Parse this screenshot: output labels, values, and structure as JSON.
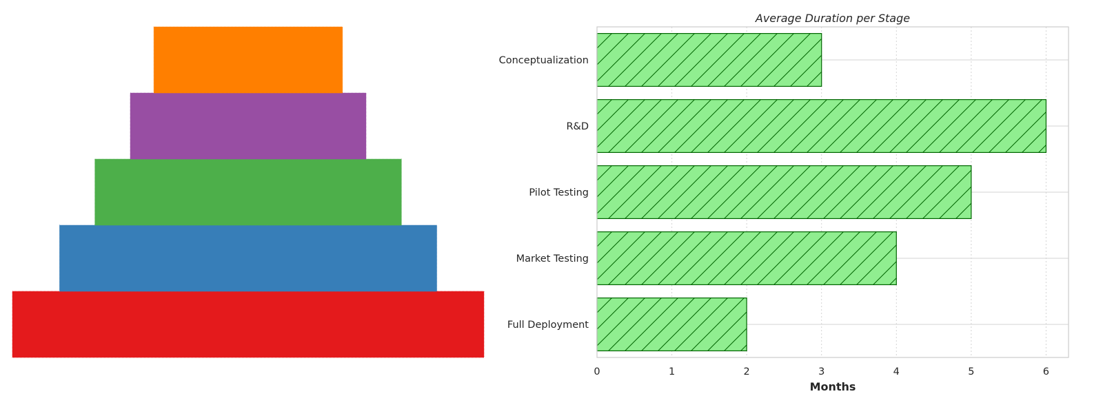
{
  "colors": {
    "funnel_stages": [
      "#e41a1c",
      "#377eb8",
      "#4daf4a",
      "#984ea3",
      "#ff7f00"
    ],
    "bar_fill": "#90ee90",
    "bar_edge": "#006400",
    "grid": "#d3d3d3",
    "text": "#262626"
  },
  "chart_data": [
    {
      "type": "funnel",
      "title": "",
      "stages_bottom_to_top": [
        {
          "name": "Full Deployment",
          "relative_width": 1.0
        },
        {
          "name": "Market Testing",
          "relative_width": 0.8
        },
        {
          "name": "Pilot Testing",
          "relative_width": 0.65
        },
        {
          "name": "R&D",
          "relative_width": 0.5
        },
        {
          "name": "Conceptualization",
          "relative_width": 0.4
        }
      ],
      "axes_visible": false
    },
    {
      "type": "bar",
      "orientation": "horizontal",
      "title": "Average Duration per Stage",
      "xlabel": "Months",
      "ylabel": "",
      "categories": [
        "Conceptualization",
        "R&D",
        "Pilot Testing",
        "Market Testing",
        "Full Deployment"
      ],
      "values": [
        3,
        6,
        5,
        4,
        2
      ],
      "xlim": [
        0,
        6.3
      ],
      "xticks": [
        "0",
        "1",
        "2",
        "3",
        "4",
        "5",
        "6"
      ],
      "hatch": "diagonal",
      "grid": true
    }
  ]
}
